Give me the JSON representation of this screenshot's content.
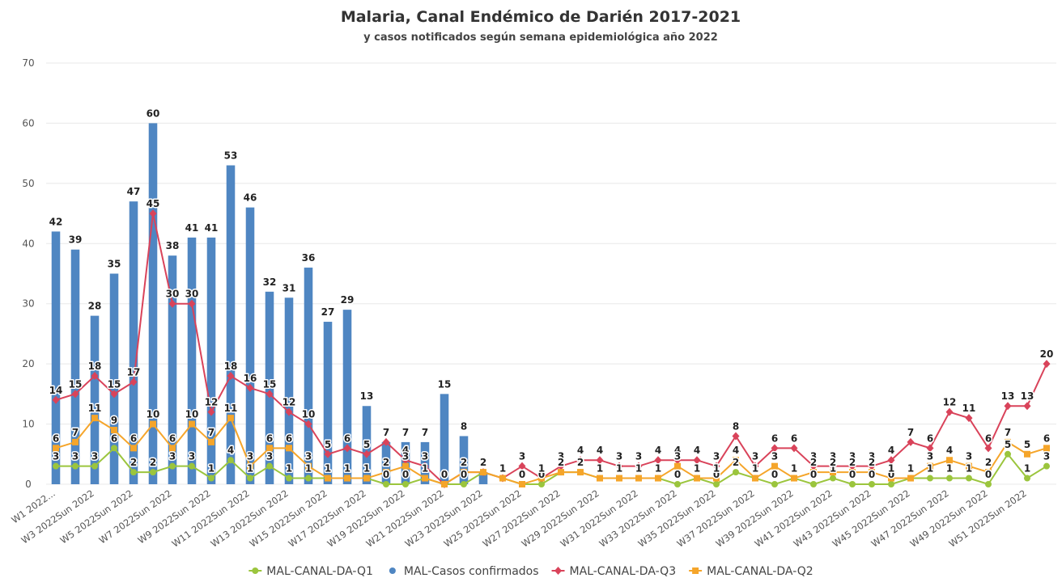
{
  "chart_data": {
    "type": "combo",
    "title": "Malaria, Canal Endémico de Darién 2017-2021",
    "subtitle": "y casos notificados según semana epidemiológica año 2022",
    "categories": [
      "W1 2022...",
      null,
      "W3 2022Sun 2022",
      null,
      "W5 2022Sun 2022",
      null,
      "W7 2022Sun 2022",
      null,
      "W9 2022Sun 2022",
      null,
      "W11 2022Sun 2022",
      null,
      "W13 2022Sun 2022",
      null,
      "W15 2022Sun 2022",
      null,
      "W17 2022Sun 2022",
      null,
      "W19 2022Sun 2022",
      null,
      "W21 2022Sun 2022",
      null,
      "W23 2022Sun 2022",
      null,
      "W25 2022Sun 2022",
      null,
      "W27 2022Sun 2022",
      null,
      "W29 2022Sun 2022",
      null,
      "W31 2022Sun 2022",
      null,
      "W33 2022Sun 2022",
      null,
      "W35 2022Sun 2022",
      null,
      "W37 2022Sun 2022",
      null,
      "W39 2022Sun 2022",
      null,
      "W41 2022Sun 2022",
      null,
      "W43 2022Sun 2022",
      null,
      "W45 2022Sun 2022",
      null,
      "W47 2022Sun 2022",
      null,
      "W49 2022Sun 2022",
      null,
      "W51 2022Sun 2022",
      null
    ],
    "ylim": [
      0,
      70
    ],
    "yticks": [
      0,
      10,
      20,
      30,
      40,
      50,
      60,
      70
    ],
    "grid": true,
    "series": [
      {
        "name": "MAL-CANAL-DA-Q1",
        "type": "line",
        "marker": "circle",
        "color": "#9bc53d",
        "values": [
          3,
          3,
          3,
          6,
          2,
          2,
          3,
          3,
          1,
          4,
          1,
          3,
          1,
          1,
          1,
          1,
          1,
          0,
          0,
          1,
          0,
          0,
          2,
          1,
          0,
          0,
          2,
          2,
          1,
          1,
          1,
          1,
          0,
          1,
          0,
          2,
          1,
          0,
          1,
          0,
          1,
          0,
          0,
          0,
          1,
          1,
          1,
          1,
          0,
          5,
          1,
          3
        ]
      },
      {
        "name": "MAL-Casos confirmados",
        "type": "bar",
        "marker": "circle",
        "color": "#4f86c2",
        "values": [
          42,
          39,
          28,
          35,
          47,
          60,
          38,
          41,
          41,
          53,
          46,
          32,
          31,
          36,
          27,
          29,
          13,
          7,
          7,
          7,
          15,
          8,
          2,
          null,
          null,
          null,
          null,
          null,
          null,
          null,
          null,
          null,
          null,
          null,
          null,
          null,
          null,
          null,
          null,
          null,
          null,
          null,
          null,
          null,
          null,
          null,
          null,
          null,
          null,
          null,
          null,
          null
        ]
      },
      {
        "name": "MAL-CANAL-DA-Q3",
        "type": "line",
        "marker": "diamond",
        "color": "#d9435a",
        "values": [
          14,
          15,
          18,
          15,
          17,
          45,
          30,
          30,
          12,
          18,
          16,
          15,
          12,
          10,
          5,
          6,
          5,
          7,
          4,
          3,
          0,
          2,
          2,
          1,
          3,
          1,
          3,
          4,
          4,
          3,
          3,
          4,
          4,
          4,
          3,
          8,
          3,
          6,
          6,
          3,
          3,
          3,
          3,
          4,
          7,
          6,
          12,
          11,
          6,
          13,
          13,
          20
        ]
      },
      {
        "name": "MAL-CANAL-DA-Q2",
        "type": "line",
        "marker": "square",
        "color": "#f5a52a",
        "values": [
          6,
          7,
          11,
          9,
          6,
          10,
          6,
          10,
          7,
          11,
          3,
          6,
          6,
          3,
          1,
          1,
          1,
          2,
          3,
          1,
          0,
          2,
          2,
          1,
          0,
          1,
          2,
          2,
          1,
          1,
          1,
          1,
          3,
          1,
          1,
          4,
          1,
          3,
          1,
          2,
          2,
          2,
          2,
          1,
          1,
          3,
          4,
          3,
          2,
          7,
          5,
          6
        ]
      }
    ]
  }
}
